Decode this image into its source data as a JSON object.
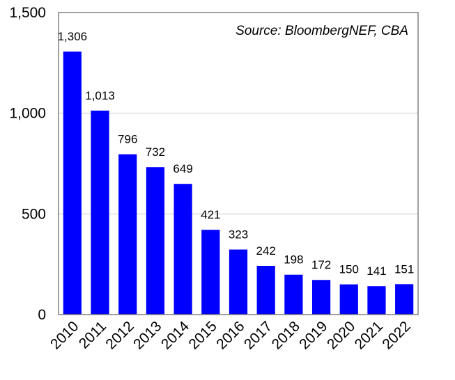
{
  "chart_data": {
    "type": "bar",
    "categories": [
      "2010",
      "2011",
      "2012",
      "2013",
      "2014",
      "2015",
      "2016",
      "2017",
      "2018",
      "2019",
      "2020",
      "2021",
      "2022"
    ],
    "values": [
      1306,
      1013,
      796,
      732,
      649,
      421,
      323,
      242,
      198,
      172,
      150,
      141,
      151
    ],
    "data_labels": [
      "1,306",
      "1,013",
      "796",
      "732",
      "649",
      "421",
      "323",
      "242",
      "198",
      "172",
      "150",
      "141",
      "151"
    ],
    "title": "",
    "xlabel": "",
    "ylabel": "",
    "ylim": [
      0,
      1500
    ],
    "yticks": [
      0,
      500,
      1000,
      1500
    ],
    "ytick_labels": [
      "0",
      "500",
      "1,000",
      "1,500"
    ],
    "grid": "horizontal",
    "legend": "none",
    "annotation": "Source: BloombergNEF, CBA",
    "bar_color": "#0000ff",
    "grid_color": "#c8c8c8",
    "frame_color": "#808080"
  }
}
